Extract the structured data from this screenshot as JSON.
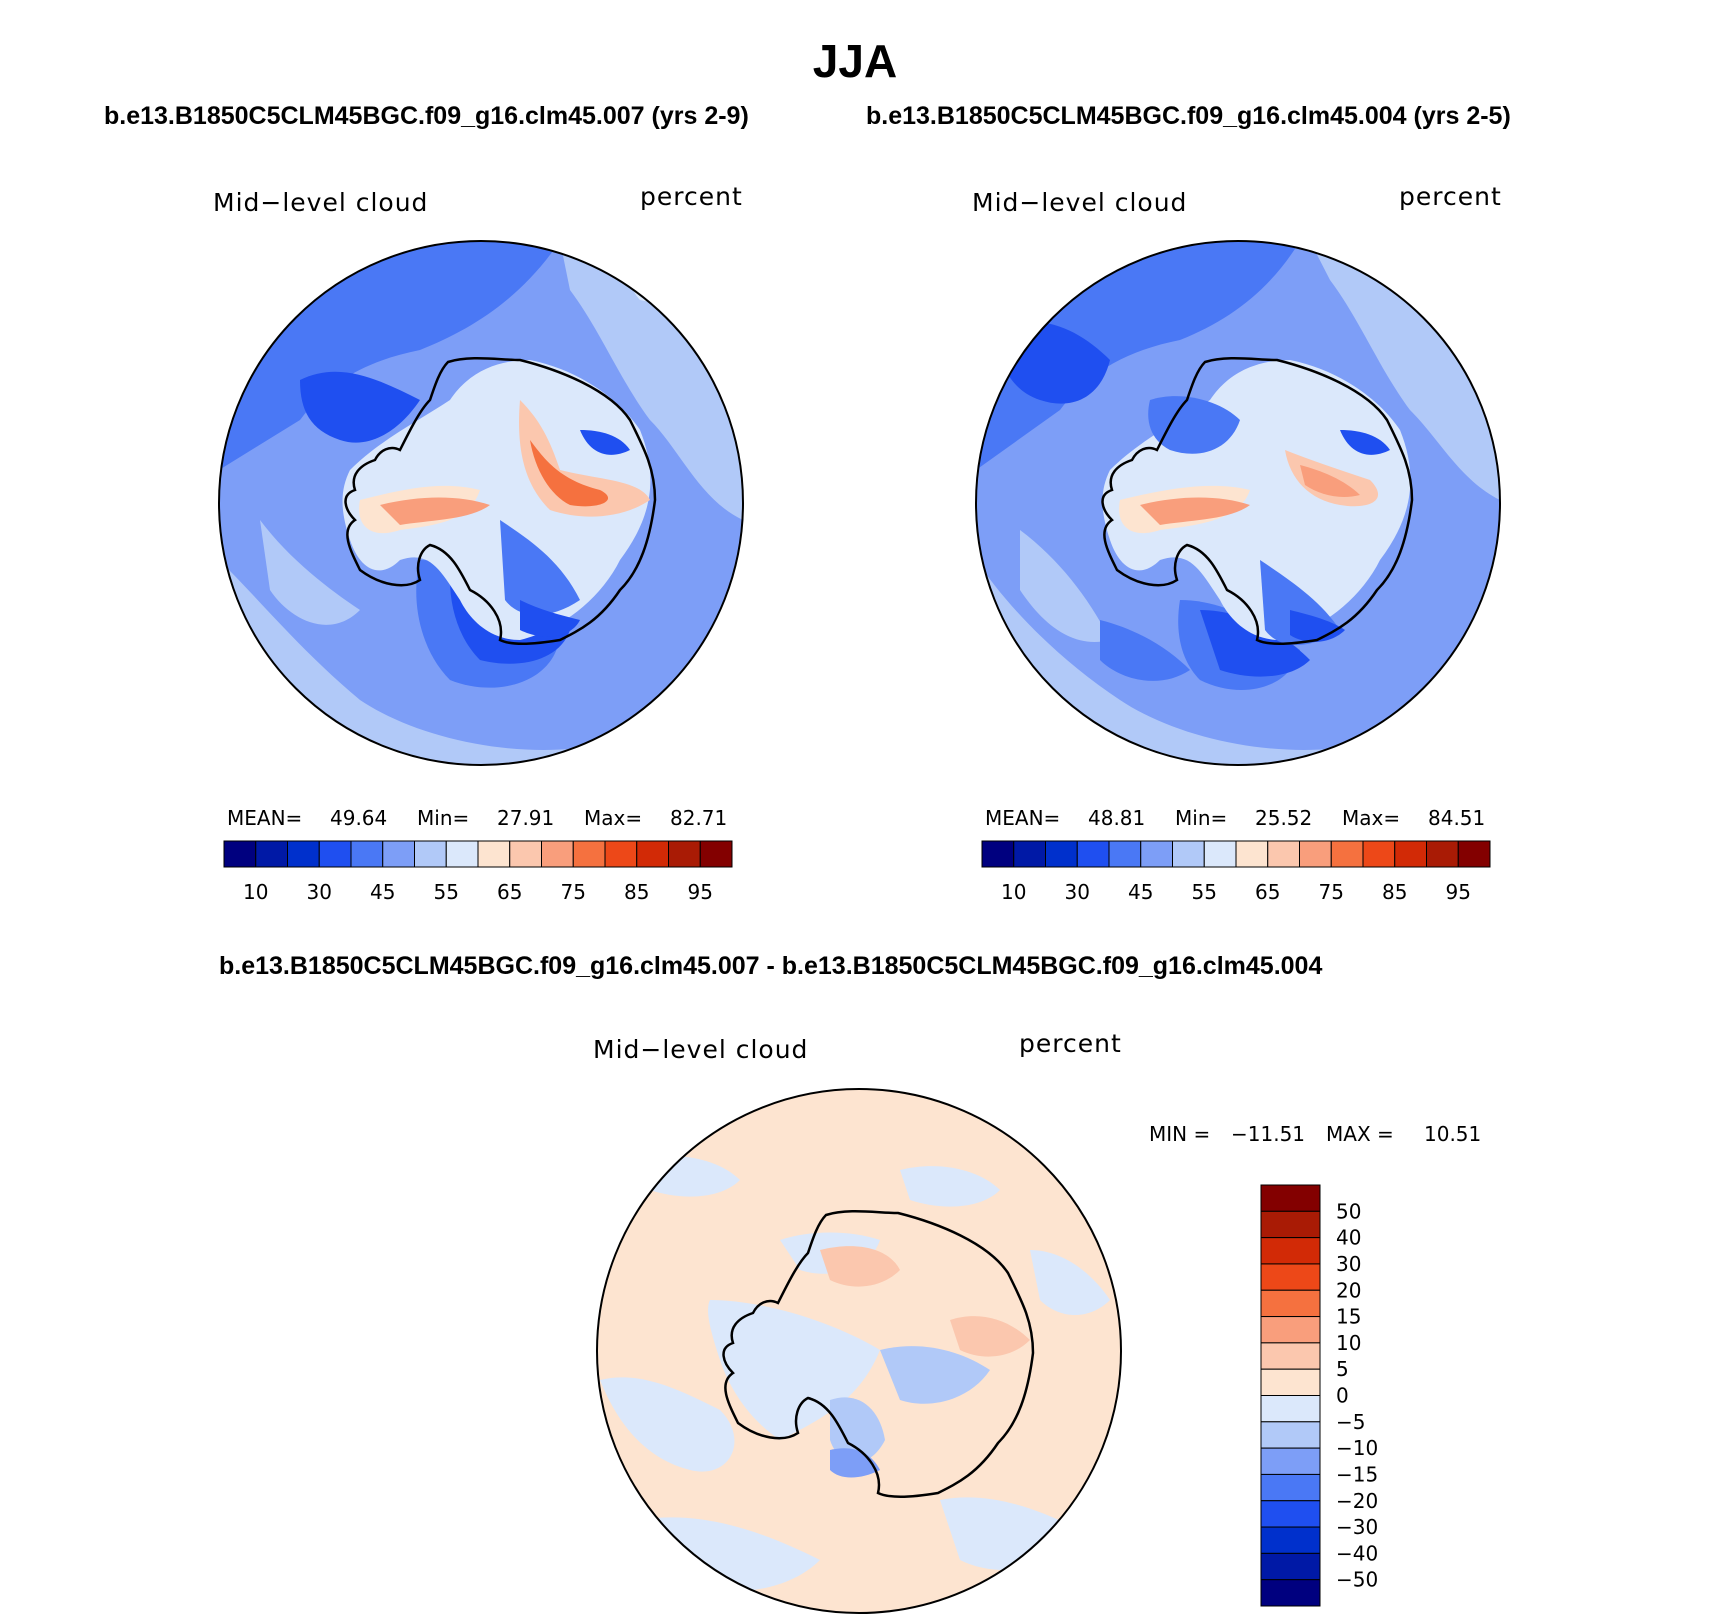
{
  "season": "JJA",
  "panel_left": {
    "title": "b.e13.B1850C5CLM45BGC.f09_g16.clm45.007 (yrs 2-9)",
    "variable": "Mid−level cloud",
    "units": "percent",
    "mean_label": "MEAN=",
    "mean": "49.64",
    "min_label": "Min=",
    "min": "27.91",
    "max_label": "Max=",
    "max": "82.71"
  },
  "panel_right": {
    "title": "b.e13.B1850C5CLM45BGC.f09_g16.clm45.004 (yrs 2-5)",
    "variable": "Mid−level cloud",
    "units": "percent",
    "mean_label": "MEAN=",
    "mean": "48.81",
    "min_label": "Min=",
    "min": "25.52",
    "max_label": "Max=",
    "max": "84.51"
  },
  "panel_diff": {
    "title": "b.e13.B1850C5CLM45BGC.f09_g16.clm45.007 - b.e13.B1850C5CLM45BGC.f09_g16.clm45.004",
    "variable": "Mid−level cloud",
    "units": "percent",
    "min_label": "MIN =",
    "min": "−11.51",
    "max_label": "MAX =",
    "max": "10.51"
  },
  "colorbar_abs": {
    "colors": [
      "#00007f",
      "#0019a6",
      "#0030cc",
      "#1f4ff0",
      "#4a78f5",
      "#7d9ef7",
      "#b1c9f8",
      "#dbe8fb",
      "#fde4d0",
      "#fbc7ae",
      "#f99e7c",
      "#f5713f",
      "#ed4818",
      "#d22a06",
      "#a91b05",
      "#830000"
    ],
    "tick_labels": [
      "10",
      "30",
      "45",
      "55",
      "65",
      "75",
      "85",
      "95"
    ]
  },
  "colorbar_diff": {
    "colors": [
      "#00007f",
      "#0019a6",
      "#0030cc",
      "#1f4ff0",
      "#4a78f5",
      "#7d9ef7",
      "#b1c9f8",
      "#dbe8fb",
      "#fde4d0",
      "#fbc7ae",
      "#f99e7c",
      "#f5713f",
      "#ed4818",
      "#d22a06",
      "#a91b05",
      "#830000"
    ],
    "tick_labels": [
      "50",
      "40",
      "30",
      "20",
      "15",
      "10",
      "5",
      "0",
      "−5",
      "−10",
      "−15",
      "−20",
      "−30",
      "−40",
      "−50"
    ]
  }
}
